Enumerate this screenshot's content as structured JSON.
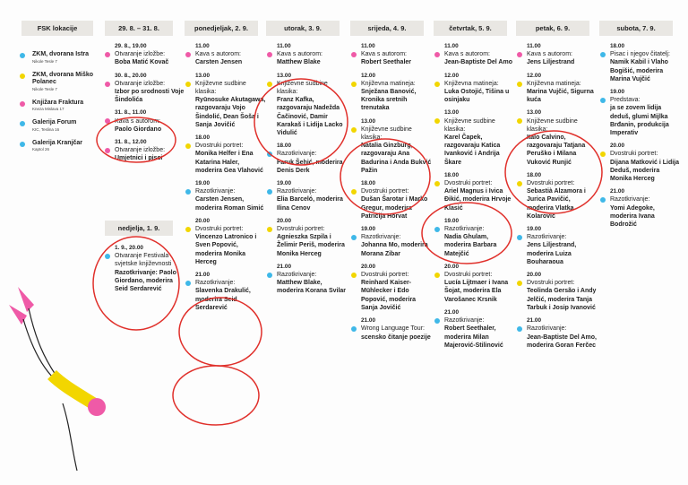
{
  "headers": {
    "locations": "FSK lokacije",
    "d1": "29. 8. – 31. 8.",
    "d2": "ponedjeljak, 2. 9.",
    "d3": "utorak, 3. 9.",
    "d4": "srijeda, 4. 9.",
    "d5": "četvrtak, 5. 9.",
    "d6": "petak, 6. 9.",
    "d7": "subota, 7. 9.",
    "sunday": "nedjelja, 1. 9."
  },
  "colors": {
    "cyan": "#3fb8e8",
    "yellow": "#f2d600",
    "pink": "#ef5aa7",
    "annotation": "#e0302b",
    "header_bg": "#e9e7e3"
  },
  "locations": [
    {
      "name": "ZKM, dvorana Istra",
      "address": "Nikole Tesle 7",
      "color": "cyan"
    },
    {
      "name": "ZKM, dvorana Miško Polanec",
      "address": "Nikole Tesle 7",
      "color": "yellow"
    },
    {
      "name": "Knjižara Fraktura",
      "address": "Kneza Mislava 17",
      "color": "pink"
    },
    {
      "name": "Galerija Forum",
      "address": "KIC, Teslina 16",
      "color": "cyan"
    },
    {
      "name": "Galerija Kranjčar",
      "address": "Kaptol 26",
      "color": "cyan"
    }
  ],
  "col1": [
    {
      "time": "29. 8., 19.00",
      "color": "pink",
      "label": "Otvaranje izložbe:",
      "detail": "Boba Matić Kovač"
    },
    {
      "time": "30. 8., 20.00",
      "color": "pink",
      "label": "Otvaranje izložbe:",
      "detail": "Izbor po srodnosti Voje Šindolića"
    },
    {
      "time": "31. 8., 11.00",
      "color": "pink",
      "label": "Kava s autorom:",
      "detail": "Paolo Giordano"
    },
    {
      "time": "31. 8., 12.00",
      "color": "pink",
      "label": "Otvaranje izložbe:",
      "detail": "Umjetnici i pisci"
    }
  ],
  "sunday": [
    {
      "time": "1. 9., 20.00",
      "color": "cyan",
      "label": "Otvaranje Festivala svjetske književnosti",
      "detail": "Razotkrivanje: Paolo Giordano, moderira Seid Serdarević"
    }
  ],
  "col2": [
    {
      "time": "11.00",
      "color": "pink",
      "label": "Kava s autorom:",
      "detail": "Carsten Jensen"
    },
    {
      "time": "13.00",
      "color": "yellow",
      "label": "Književne sudbine klasika:",
      "detail": "Ryūnosuke Akutagawa, razgovaraju Vojo Šindolić, Dean Šoša i Sanja Jovičić"
    },
    {
      "time": "18.00",
      "color": "yellow",
      "label": "Dvostruki portret:",
      "detail": "Monika Helfer i Ena Katarina Haler, moderira Gea Vlahović"
    },
    {
      "time": "19.00",
      "color": "cyan",
      "label": "Razotkrivanje:",
      "detail": "Carsten Jensen, moderira Roman Simić"
    },
    {
      "time": "20.00",
      "color": "yellow",
      "label": "Dvostruki portret:",
      "detail": "Vincenzo Latronico i Sven Popović, moderira Monika Herceg"
    },
    {
      "time": "21.00",
      "color": "cyan",
      "label": "Razotkrivanje:",
      "detail": "Slavenka Drakulić, moderira Seid Serdarević"
    }
  ],
  "col3": [
    {
      "time": "11.00",
      "color": "pink",
      "label": "Kava s autorom:",
      "detail": "Matthew Blake"
    },
    {
      "time": "13.00",
      "color": "yellow",
      "label": "Književne sudbine klasika:",
      "detail": "Franz Kafka, razgovaraju Nadežda Čačinović, Damir Karakaš i Lidija Lacko Vidulić"
    },
    {
      "time": "18.00",
      "color": "cyan",
      "label": "Razotkrivanje:",
      "detail": "Faruk Šehić, moderira Denis Derk"
    },
    {
      "time": "19.00",
      "color": "cyan",
      "label": "Razotkrivanje:",
      "detail": "Elia Barceló, moderira Ilina Cenov"
    },
    {
      "time": "20.00",
      "color": "yellow",
      "label": "Dvostruki portret:",
      "detail": "Agnieszka Szpila i Želimir Periš, moderira Monika Herceg"
    },
    {
      "time": "21.00",
      "color": "cyan",
      "label": "Razotkrivanje:",
      "detail": "Matthew Blake, moderira Korana Svilar"
    }
  ],
  "col4": [
    {
      "time": "11.00",
      "color": "pink",
      "label": "Kava s autorom:",
      "detail": "Robert Seethaler"
    },
    {
      "time": "12.00",
      "color": "yellow",
      "label": "Književna matineja:",
      "detail": "Snježana Banović, Kronika sretnih trenutaka"
    },
    {
      "time": "13.00",
      "color": "yellow",
      "label": "Književne sudbine klasika:",
      "detail": "Natalia Ginzburg, razgovaraju Ana Badurina i Anda Bukvić Pažin"
    },
    {
      "time": "18.00",
      "color": "yellow",
      "label": "Dvostruki portret:",
      "detail": "Dušan Šarotar i Marko Gregur, moderira Patricija Horvat"
    },
    {
      "time": "19.00",
      "color": "cyan",
      "label": "Razotkrivanje:",
      "detail": "Johanna Mo, moderira Morana Zibar"
    },
    {
      "time": "20.00",
      "color": "yellow",
      "label": "Dvostruki portret:",
      "detail": "Reinhard Kaiser-Mühlecker i Edo Popović, moderira Sanja Jovičić"
    },
    {
      "time": "21.00",
      "color": "cyan",
      "label": "Wrong Language Tour:",
      "detail": "scensko čitanje poezije"
    }
  ],
  "col5": [
    {
      "time": "11.00",
      "color": "pink",
      "label": "Kava s autorom:",
      "detail": "Jean-Baptiste Del Amo"
    },
    {
      "time": "12.00",
      "color": "yellow",
      "label": "Književna matineja:",
      "detail": "Luka Ostojić, Tišina u osinjaku"
    },
    {
      "time": "13.00",
      "color": "yellow",
      "label": "Književne sudbine klasika:",
      "detail": "Karel Čapek, razgovaraju Katica Ivanković i Andrija Škare"
    },
    {
      "time": "18.00",
      "color": "yellow",
      "label": "Dvostruki portret:",
      "detail": "Ariel Magnus i Ivica Đikić, moderira Hrvoje Klasić"
    },
    {
      "time": "19.00",
      "color": "cyan",
      "label": "Razotkrivanje:",
      "detail": "Nadia Ghulam, moderira Barbara Matejčić"
    },
    {
      "time": "20.00",
      "color": "yellow",
      "label": "Dvostruki portret:",
      "detail": "Lucía Lijtmaer i Ivana Šojat, moderira Ela Varošanec Krsnik"
    },
    {
      "time": "21.00",
      "color": "cyan",
      "label": "Razotkrivanje:",
      "detail": "Robert Seethaler, moderira Milan Majerović-Stilinović"
    }
  ],
  "col6": [
    {
      "time": "11.00",
      "color": "pink",
      "label": "Kava s autorom:",
      "detail": "Jens Liljestrand"
    },
    {
      "time": "12.00",
      "color": "yellow",
      "label": "Književna matineja:",
      "detail": "Marina Vujčić, Sigurna kuća"
    },
    {
      "time": "13.00",
      "color": "yellow",
      "label": "Književne sudbine klasika:",
      "detail": "Italo Calvino, razgovaraju Tatjana Peruško i Milana Vuković Runjić"
    },
    {
      "time": "18.00",
      "color": "yellow",
      "label": "Dvostruki portret:",
      "detail": "Sebastià Alzamora i Jurica Pavičić, moderira Vlatka Kolarović"
    },
    {
      "time": "19.00",
      "color": "cyan",
      "label": "Razotkrivanje:",
      "detail": "Jens Liljestrand, moderira Luiza Bouharaoua"
    },
    {
      "time": "20.00",
      "color": "yellow",
      "label": "Dvostruki portret:",
      "detail": "Teolinda Gersão i Andy Jelčić, moderira Tanja Tarbuk i Josip Ivanović"
    },
    {
      "time": "21.00",
      "color": "cyan",
      "label": "Razotkrivanje:",
      "detail": "Jean-Baptiste Del Amo, moderira Goran Ferčec"
    }
  ],
  "col7": [
    {
      "time": "18.00",
      "color": "cyan",
      "label": "Pisac i njegov čitatelj:",
      "detail": "Namik Kabil i Vlaho Bogišić, moderira Marina Vujčić"
    },
    {
      "time": "19.00",
      "color": "cyan",
      "label": "Predstava:",
      "detail": "ja se zovem lidija deduš, glumi Mijlka Brđanin, produkcija Imperativ"
    },
    {
      "time": "20.00",
      "color": "yellow",
      "label": "Dvostruki portret:",
      "detail": "Dijana Matković i Lidija Deduš, moderira Monika Herceg"
    },
    {
      "time": "21.00",
      "color": "cyan",
      "label": "Razotkrivanje:",
      "detail": "Yomi Adegoke, moderira Ivana Bodrožić"
    }
  ]
}
